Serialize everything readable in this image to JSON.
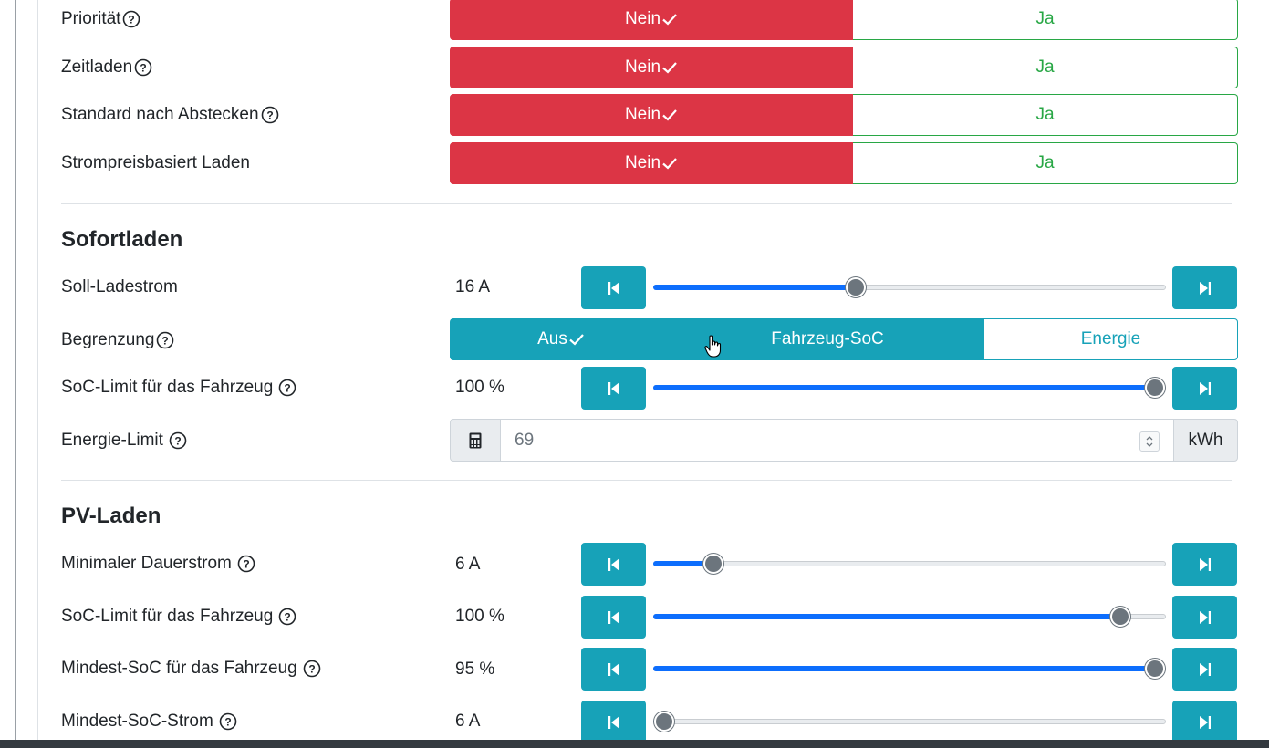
{
  "toggles": [
    {
      "label": "Priorität",
      "help": true,
      "no": "Nein",
      "yes": "Ja",
      "selected": "no"
    },
    {
      "label": "Zeitladen",
      "help": true,
      "no": "Nein",
      "yes": "Ja",
      "selected": "no"
    },
    {
      "label": "Standard nach Abstecken",
      "help": true,
      "no": "Nein",
      "yes": "Ja",
      "selected": "no"
    },
    {
      "label": "Strompreisbasiert Laden",
      "help": false,
      "no": "Nein",
      "yes": "Ja",
      "selected": "no"
    }
  ],
  "sofortladen": {
    "title": "Sofortladen",
    "soll_ladestrom": {
      "label": "Soll-Ladestrom",
      "value": "16 A",
      "level": 0.39
    },
    "begrenzung": {
      "label": "Begrenzung",
      "options": [
        "Aus",
        "Fahrzeug-SoC",
        "Energie"
      ],
      "selected": "Aus"
    },
    "soc_limit": {
      "label": "SoC-Limit für das Fahrzeug",
      "value": "100 %",
      "level": 1.0
    },
    "energie_limit": {
      "label": "Energie-Limit",
      "value": "69",
      "unit": "kWh"
    }
  },
  "pvladen": {
    "title": "PV-Laden",
    "min_dauerstrom": {
      "label": "Minimaler Dauerstrom",
      "value": "6 A",
      "level": 0.1
    },
    "soc_limit": {
      "label": "SoC-Limit für das Fahrzeug",
      "value": "100 %",
      "level": 0.93
    },
    "mindest_soc": {
      "label": "Mindest-SoC für das Fahrzeug",
      "value": "95 %",
      "level": 1.0
    },
    "mindest_soc_strom": {
      "label": "Mindest-SoC-Strom",
      "value": "6 A",
      "level": 0.0
    }
  },
  "colors": {
    "red": "#dc3545",
    "green": "#28a745",
    "teal": "#17a2b8",
    "blue": "#0d6efd"
  },
  "icons": {
    "help": "question-circle-icon",
    "check": "check-icon",
    "prev": "skip-backward-icon",
    "next": "skip-forward-icon",
    "calc": "calculator-icon",
    "cursor": "hand-pointer-icon"
  }
}
